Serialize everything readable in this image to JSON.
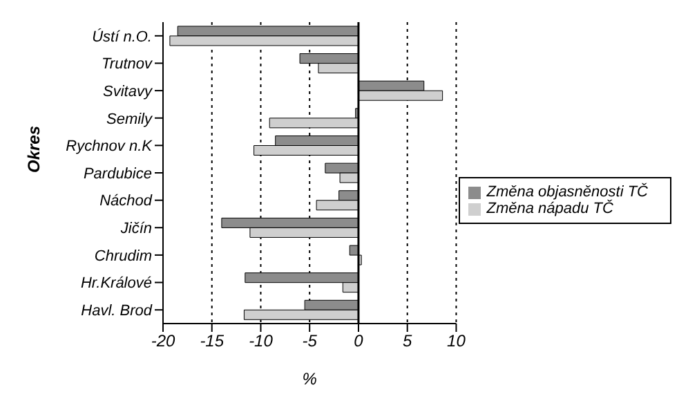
{
  "chart_data": {
    "type": "bar",
    "orientation": "horizontal",
    "xlabel": "%",
    "ylabel": "Okres",
    "categories": [
      "Ústí n.O.",
      "Trutnov",
      "Svitavy",
      "Semily",
      "Rychnov n.K",
      "Pardubice",
      "Náchod",
      "Jičín",
      "Chrudim",
      "Hr.Králové",
      "Havl. Brod"
    ],
    "series": [
      {
        "name": "Změna objasněnosti TČ",
        "color": "#8c8c8c",
        "values": [
          -18.5,
          -6.0,
          6.7,
          -0.3,
          -8.5,
          -3.4,
          -2.0,
          -14.0,
          -0.9,
          -11.6,
          -5.5
        ]
      },
      {
        "name": "Změna nápadu TČ",
        "color": "#cfcfcf",
        "values": [
          -19.3,
          -4.1,
          8.6,
          -9.1,
          -10.7,
          -1.9,
          -4.3,
          -11.1,
          0.3,
          -1.6,
          -11.7
        ]
      }
    ],
    "xlim": [
      -20,
      10
    ],
    "xticks": [
      -20,
      -15,
      -10,
      -5,
      0,
      5,
      10
    ],
    "ref_lines": [
      {
        "axis": "x",
        "value": 0,
        "color": "#000000",
        "line_style": "solid"
      }
    ],
    "grid": "x",
    "legend": "right"
  }
}
